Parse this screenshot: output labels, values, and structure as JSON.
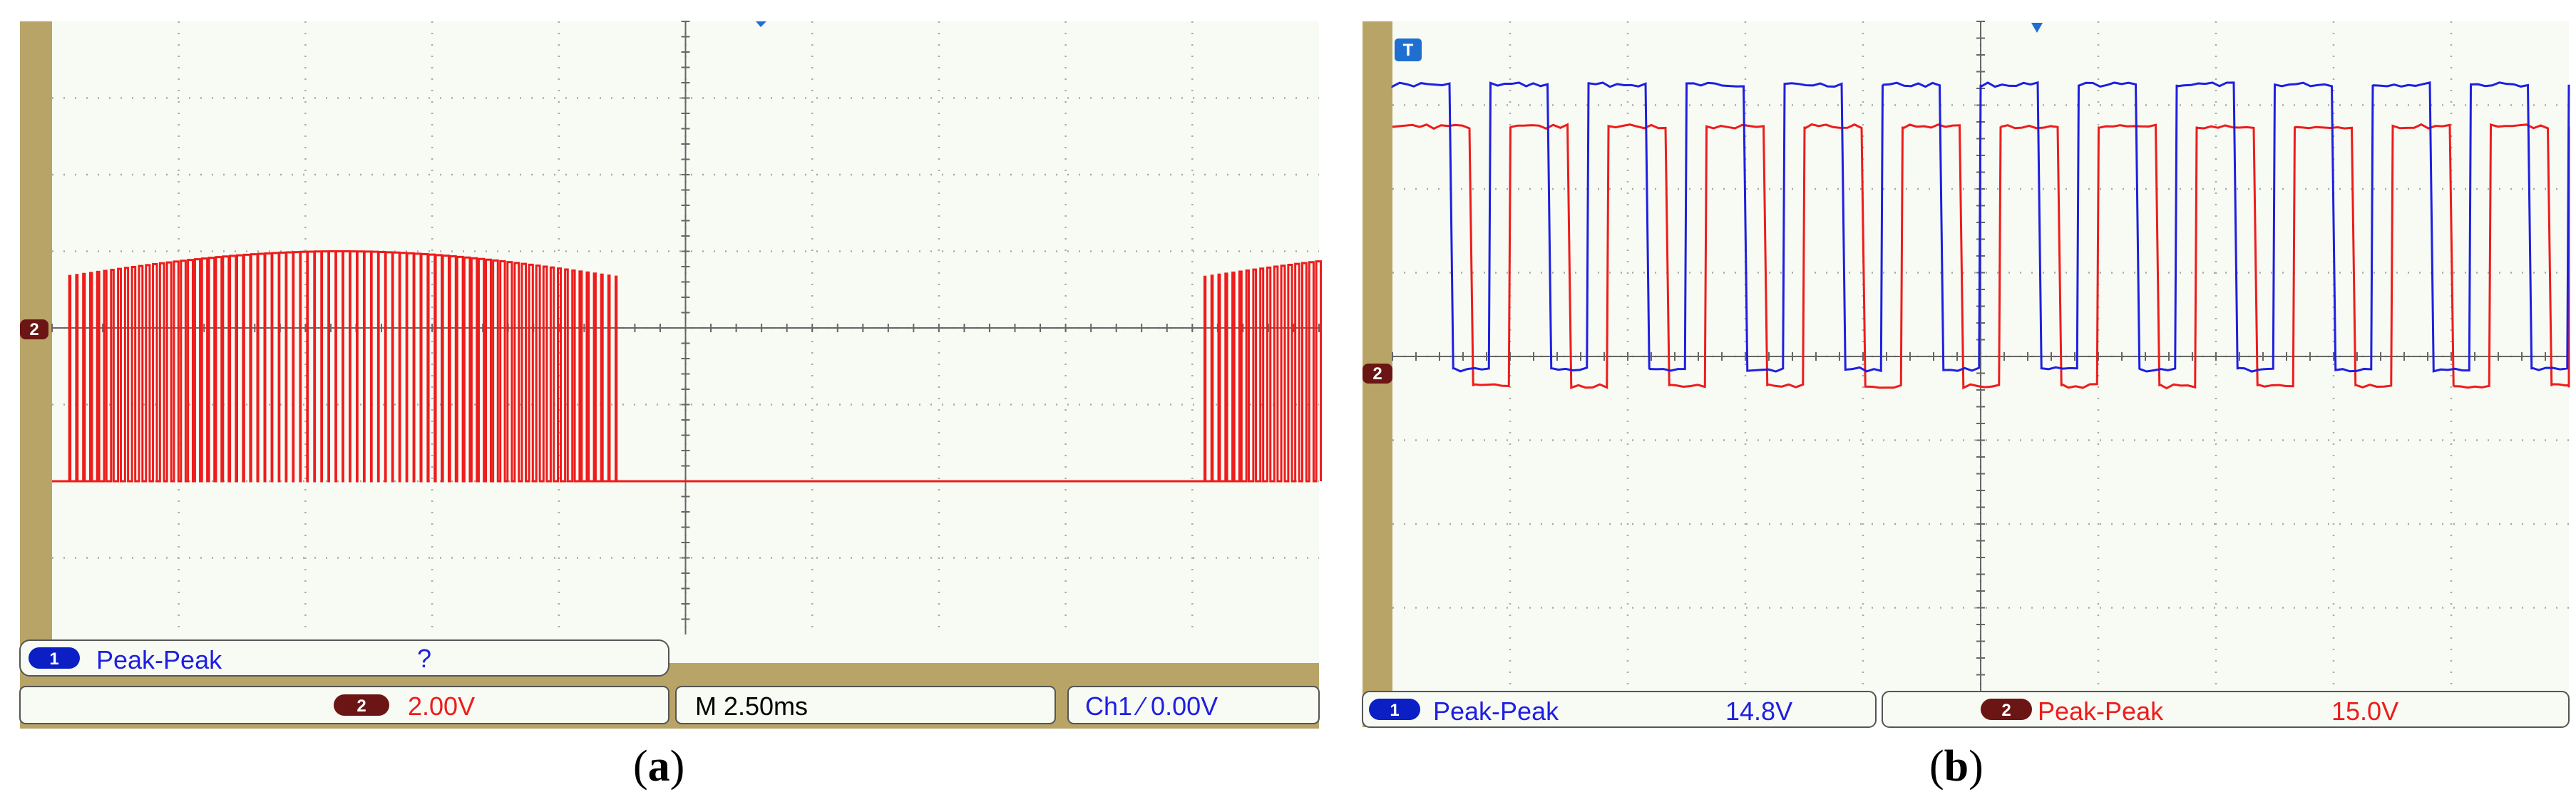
{
  "panels": [
    {
      "id": "a",
      "caption_open": "(",
      "caption_letter": "a",
      "caption_close": ")",
      "ch2_marker": "2",
      "measure_row": {
        "badge": "1",
        "label": "Peak-Peak",
        "value": "?"
      },
      "status": {
        "ch2_badge": "2",
        "ch2_scale": "2.00V",
        "timebase": "M 2.50ms",
        "trigger": "Ch1 ⁄ 0.00V"
      }
    },
    {
      "id": "b",
      "caption_open": "(",
      "caption_letter": "b",
      "caption_close": ")",
      "trigger_marker": "T",
      "ch2_marker": "2",
      "measure": [
        {
          "badge": "1",
          "label": "Peak-Peak",
          "value": "14.8V"
        },
        {
          "badge": "2",
          "label": "Peak-Peak",
          "value": "15.0V"
        }
      ]
    }
  ],
  "colors": {
    "screen_bg": "#f7fbf4",
    "bezel": "#b9a468",
    "grid": "#a9a9a9",
    "ch1": "#1f1fe0",
    "ch2": "#ee1c1c",
    "badge_ch1": "#0b1fc4",
    "badge_ch2": "#6b1515"
  },
  "chart_data": [
    {
      "type": "line",
      "panel": "a",
      "xlabel": "",
      "ylabel": "",
      "x_divisions": 10,
      "y_divisions": 8,
      "x_scale_per_div": "2.50ms",
      "y_scale_per_div": "2.00V",
      "xlim": [
        0,
        25
      ],
      "ylim": [
        -4,
        12
      ],
      "grid": true,
      "series": [
        {
          "channel": 2,
          "color": "#ee1c1c",
          "kind": "pwm_sinusoidal",
          "low_level": 0,
          "high_level": 6.0,
          "high_level_crest": 6.0,
          "high_level_edge": 5.3,
          "period_ms": 22.5
        }
      ]
    },
    {
      "type": "line",
      "panel": "b",
      "xlabel": "",
      "ylabel": "",
      "x_divisions": 10,
      "y_divisions": 8,
      "ylim": [
        -4,
        4
      ],
      "grid": true,
      "series": [
        {
          "channel": 1,
          "color": "#1f1fe0",
          "kind": "square",
          "low_level": 0.1,
          "high_level": 3.5,
          "cycles": 12
        },
        {
          "channel": 2,
          "color": "#ee1c1c",
          "kind": "square",
          "low_level": -0.1,
          "high_level": 3.0,
          "cycles": 12
        }
      ]
    }
  ]
}
